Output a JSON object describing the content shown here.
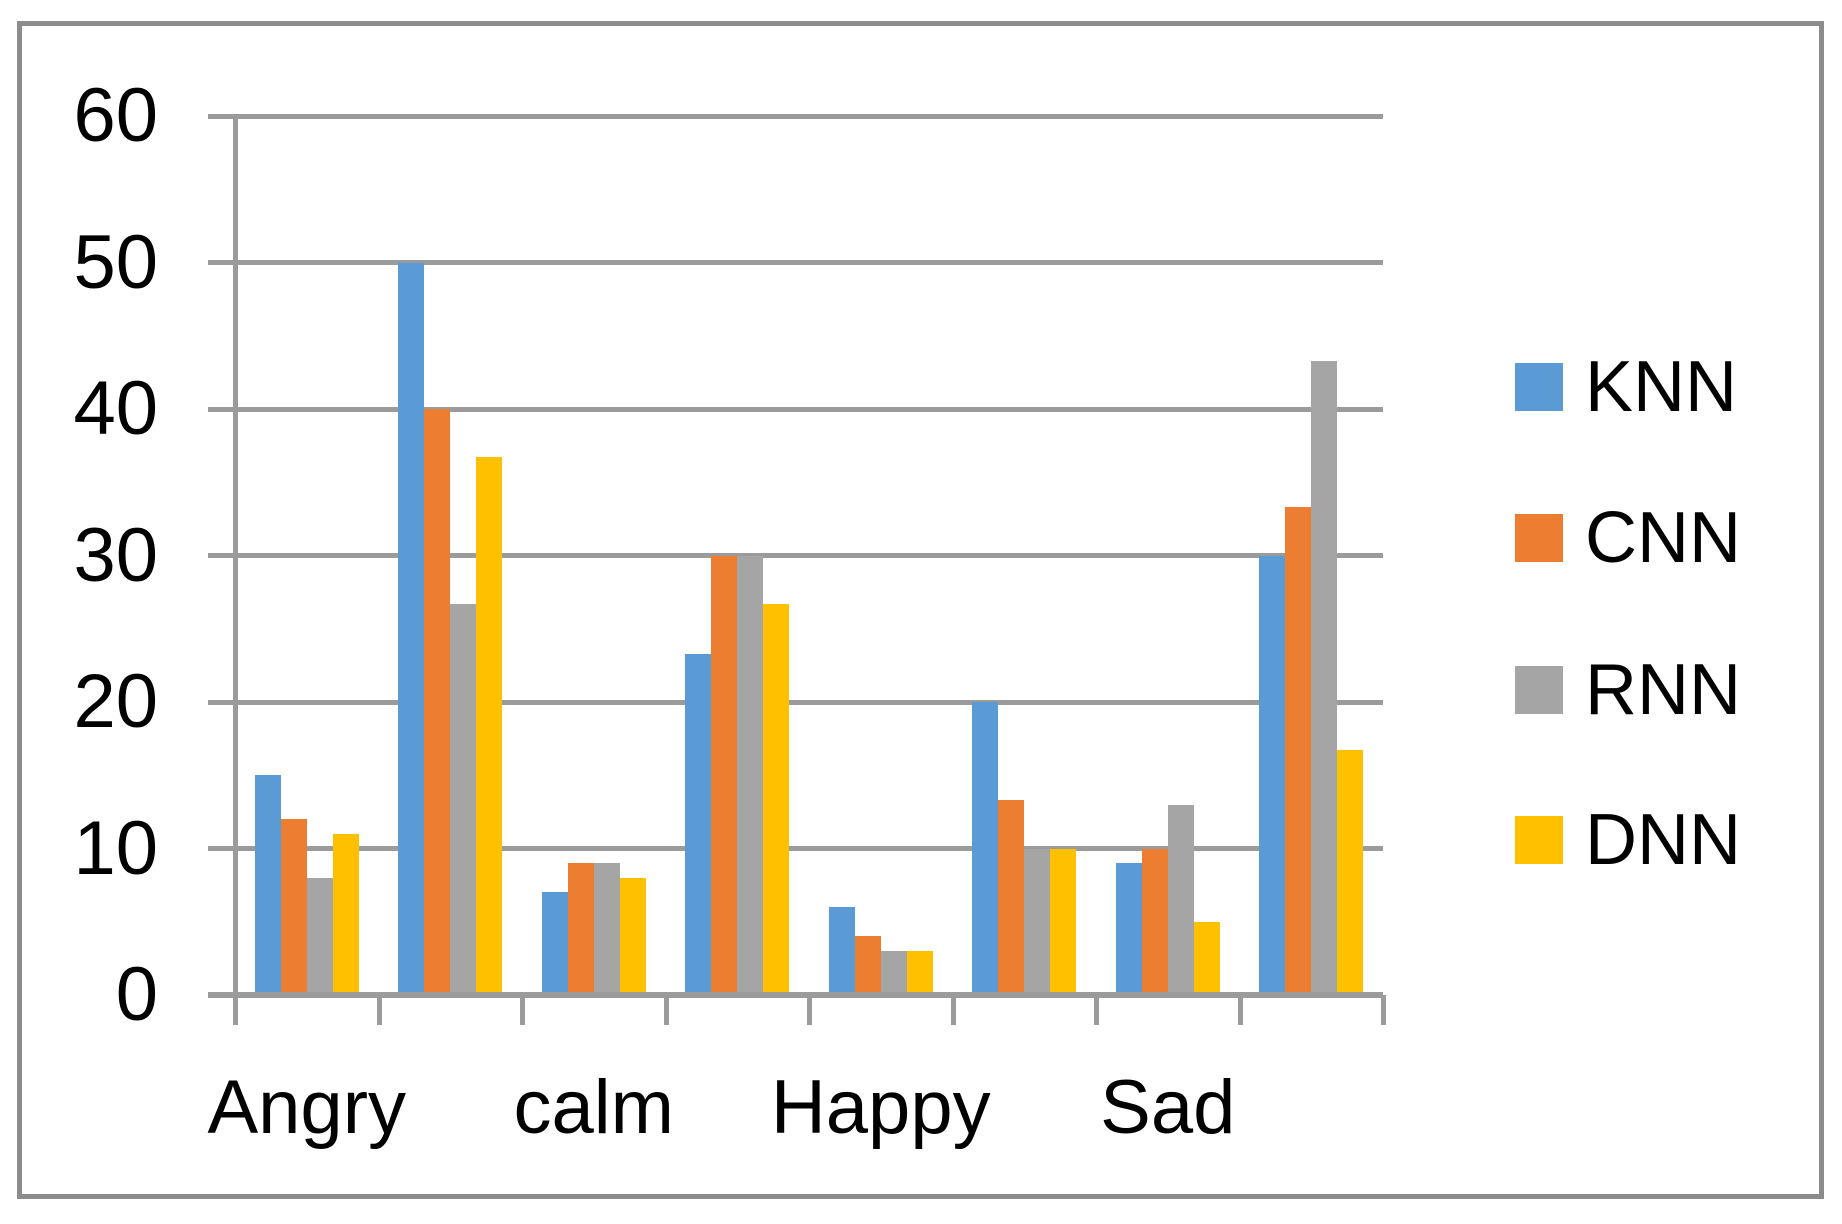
{
  "figure": {
    "kind": "grouped-bar-chart-screenshot",
    "background": "#ffffff",
    "border_color": "#8c8c8c"
  },
  "chart_data": {
    "type": "bar",
    "title": "",
    "xlabel": "",
    "ylabel": "",
    "categories": [
      "Angry",
      "",
      "calm",
      "",
      "Happy",
      "",
      "Sad",
      ""
    ],
    "visible_x_tick_labels": [
      "Angry",
      "calm",
      "Happy",
      "Sad"
    ],
    "series": [
      {
        "name": "KNN",
        "color": "#5B9BD5",
        "values": [
          15,
          50,
          7,
          23.3,
          6,
          20,
          9,
          30
        ]
      },
      {
        "name": "CNN",
        "color": "#ED7D31",
        "values": [
          12,
          40,
          9,
          30,
          4,
          13.3,
          10,
          33.3
        ]
      },
      {
        "name": "RNN",
        "color": "#A5A5A5",
        "values": [
          8,
          26.7,
          9,
          30,
          3,
          10,
          13,
          43.3
        ]
      },
      {
        "name": "DNN",
        "color": "#FFC000",
        "values": [
          11,
          36.7,
          8,
          26.7,
          3,
          10,
          5,
          16.7
        ]
      }
    ],
    "ylim": [
      0,
      60
    ],
    "yticks": [
      0,
      10,
      20,
      30,
      40,
      50,
      60
    ],
    "grid": true,
    "gridline_color": "#9b9b9b",
    "axis_color": "#9b9b9b",
    "text_color": "#000000",
    "legend_position": "right",
    "legend_entries": [
      "KNN",
      "CNN",
      "RNN",
      "DNN"
    ]
  }
}
